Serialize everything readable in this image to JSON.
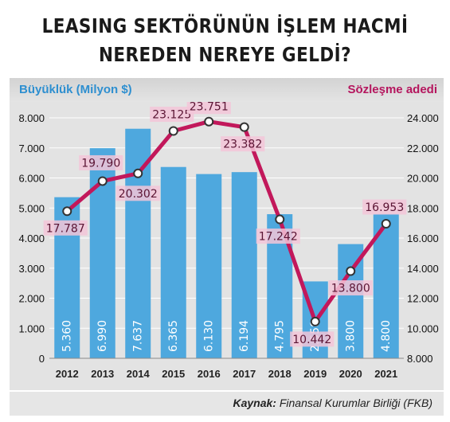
{
  "title_line1": "LEASING SEKTÖRÜNÜN İŞLEM HACMİ",
  "title_line2": "NEREDEN NEREYE GELDİ?",
  "left_axis_label": "Büyüklük (Milyon $)",
  "right_axis_label": "Sözleşme adedi",
  "source_label": "Kaynak:",
  "source_text": "Finansal Kurumlar Birliği (FKB)",
  "colors": {
    "bar": "#4ea8de",
    "line": "#c2185b",
    "point_label_bg": "#f3c6d8",
    "left_label": "#2e8fd0",
    "right_label": "#b5165e"
  },
  "chart_data": {
    "type": "bar+line",
    "categories": [
      "2012",
      "2013",
      "2014",
      "2015",
      "2016",
      "2017",
      "2018",
      "2019",
      "2020",
      "2021"
    ],
    "bars": {
      "axis": "left",
      "values": [
        5360,
        6990,
        7637,
        6365,
        6130,
        6194,
        4795,
        2558,
        3800,
        4800
      ],
      "labels": [
        "5.360",
        "6.990",
        "7.637",
        "6.365",
        "6.130",
        "6.194",
        "4.795",
        "2.558",
        "3.800",
        "4.800"
      ]
    },
    "line": {
      "axis": "right",
      "values": [
        17787,
        19790,
        20302,
        23125,
        23751,
        23382,
        17242,
        10442,
        13800,
        16953
      ],
      "labels": [
        "17.787",
        "19.790",
        "20.302",
        "23.125",
        "23.751",
        "23.382",
        "17.242",
        "10.442",
        "13.800",
        "16.953"
      ]
    },
    "left_axis": {
      "min": 0,
      "max": 8000,
      "ticks": [
        0,
        1000,
        2000,
        3000,
        4000,
        5000,
        6000,
        7000,
        8000
      ],
      "tick_labels": [
        "0",
        "1.000",
        "2.000",
        "3.000",
        "4.000",
        "5.000",
        "6.000",
        "7.000",
        "8.000"
      ]
    },
    "right_axis": {
      "min": 8000,
      "max": 24000,
      "ticks": [
        8000,
        10000,
        12000,
        14000,
        16000,
        18000,
        20000,
        22000,
        24000
      ],
      "tick_labels": [
        "8.000",
        "10.000",
        "12.000",
        "14.000",
        "16.000",
        "18.000",
        "20.000",
        "22.000",
        "24.000"
      ]
    },
    "grid": true
  }
}
